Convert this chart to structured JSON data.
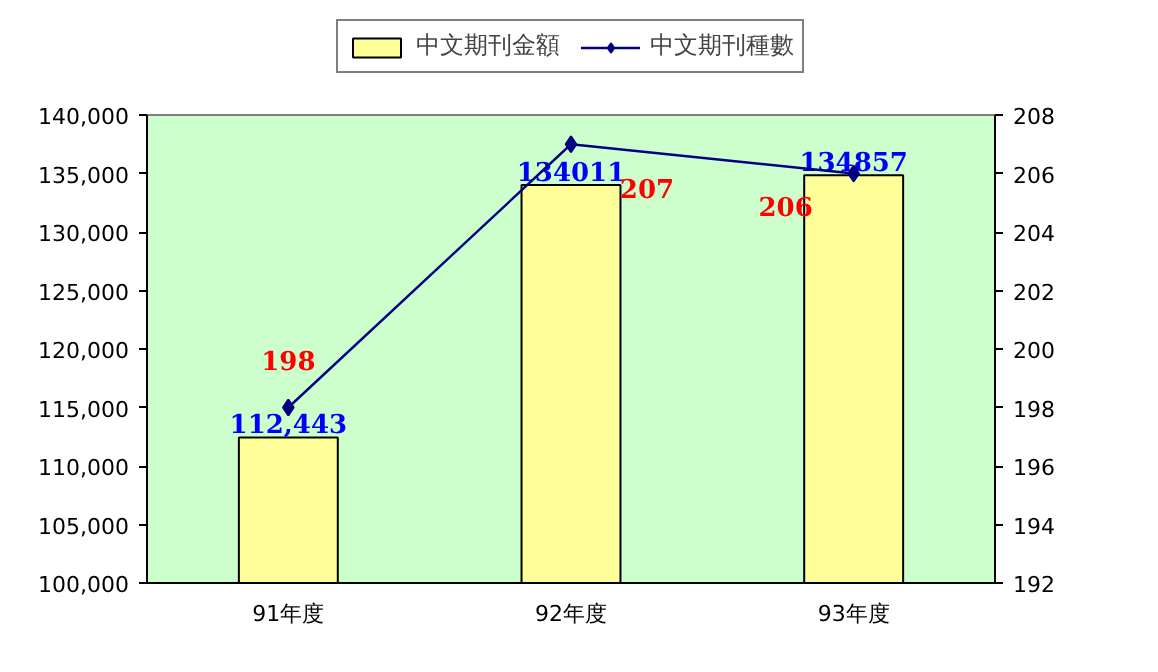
{
  "chart_data": {
    "type": "bar",
    "categories": [
      "91年度",
      "92年度",
      "93年度"
    ],
    "series": [
      {
        "name": "中文期刊金額",
        "color": "#ffff99",
        "values": [
          112443,
          134011,
          134857
        ],
        "value_labels": [
          "112,443",
          "134011",
          "134857"
        ]
      },
      {
        "name": "中文期刊種數",
        "type": "line",
        "axis": "y2",
        "color": "#000080",
        "values": [
          198,
          207,
          206
        ],
        "value_labels": [
          "198",
          "207",
          "206"
        ],
        "marker": "diamond"
      }
    ],
    "ylim": [
      100000,
      140000
    ],
    "yticks": [
      {
        "value": 100000,
        "label": "100,000"
      },
      {
        "value": 105000,
        "label": "105,000"
      },
      {
        "value": 110000,
        "label": "110,000"
      },
      {
        "value": 115000,
        "label": "115,000"
      },
      {
        "value": 120000,
        "label": "120,000"
      },
      {
        "value": 125000,
        "label": "125,000"
      },
      {
        "value": 130000,
        "label": "130,000"
      },
      {
        "value": 135000,
        "label": "135,000"
      },
      {
        "value": 140000,
        "label": "140,000"
      }
    ],
    "y2lim": [
      192,
      208
    ],
    "y2ticks": [
      192,
      194,
      196,
      198,
      200,
      202,
      204,
      206,
      208
    ],
    "grid": false,
    "legend": "top",
    "line_style": "solid"
  }
}
